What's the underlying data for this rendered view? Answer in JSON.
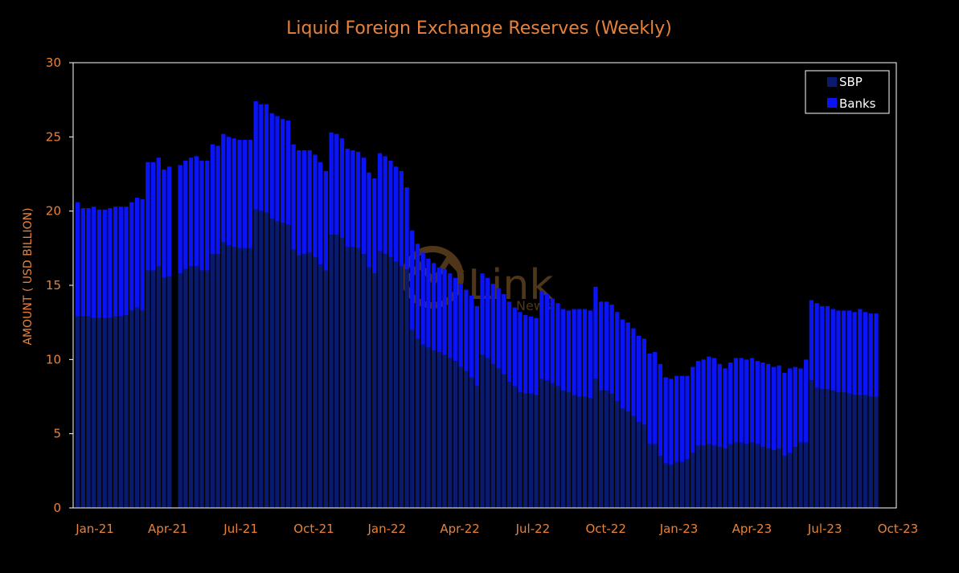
{
  "colors": {
    "background": "#000000",
    "text": "#e8823a",
    "sbp": "#0a1a6e",
    "banks": "#0a14f5",
    "axis": "#ffffff",
    "watermark": "#b07838"
  },
  "watermark": {
    "text": "Link",
    "subtext": "News"
  },
  "chart_data": {
    "type": "bar",
    "stacked": true,
    "title": "Liquid Foreign Exchange Reserves (Weekly)",
    "ylabel": "AMOUNT ( USD BILLION)",
    "xlabel": "",
    "ylim": [
      0,
      30
    ],
    "yticks": [
      0,
      5,
      10,
      15,
      20,
      25,
      30
    ],
    "xlim": [
      "2021-01-01",
      "2023-10-01"
    ],
    "xtick_labels": [
      "Jan-21",
      "Apr-21",
      "Jul-21",
      "Oct-21",
      "Jan-22",
      "Apr-22",
      "Jul-22",
      "Oct-22",
      "Jan-23",
      "Apr-23",
      "Jul-23",
      "Oct-23"
    ],
    "legend": {
      "position": "top-right",
      "entries": [
        "SBP",
        "Banks"
      ]
    },
    "grid": false,
    "series": [
      {
        "name": "SBP",
        "values": [
          12.9,
          12.9,
          12.9,
          12.8,
          12.8,
          12.8,
          12.8,
          12.9,
          12.9,
          13.0,
          13.3,
          13.5,
          13.3,
          16.0,
          16.0,
          16.3,
          15.5,
          15.6,
          0,
          15.8,
          16.1,
          16.3,
          16.3,
          16.0,
          16.0,
          17.1,
          17.1,
          17.9,
          17.7,
          17.6,
          17.5,
          17.5,
          17.5,
          20.1,
          20.0,
          19.9,
          19.5,
          19.3,
          19.2,
          19.1,
          17.4,
          17.0,
          17.1,
          17.2,
          16.9,
          16.4,
          16.0,
          18.4,
          18.4,
          18.2,
          17.6,
          17.6,
          17.5,
          17.1,
          16.2,
          15.8,
          17.3,
          17.1,
          16.9,
          16.6,
          16.3,
          16.1,
          12.0,
          11.4,
          11.0,
          10.8,
          10.6,
          10.5,
          10.3,
          10.1,
          9.9,
          9.5,
          9.2,
          8.8,
          8.2,
          10.3,
          10.1,
          9.7,
          9.4,
          9.0,
          8.5,
          8.2,
          7.8,
          7.7,
          7.7,
          7.6,
          8.7,
          8.6,
          8.4,
          8.2,
          7.9,
          7.8,
          7.6,
          7.5,
          7.5,
          7.4,
          8.7,
          7.9,
          7.9,
          7.7,
          7.2,
          6.7,
          6.5,
          6.2,
          5.8,
          5.6,
          4.3,
          4.3,
          3.5,
          3.0,
          2.9,
          3.1,
          3.1,
          3.3,
          3.7,
          4.2,
          4.2,
          4.3,
          4.2,
          4.1,
          4.0,
          4.3,
          4.4,
          4.4,
          4.3,
          4.4,
          4.3,
          4.1,
          4.0,
          3.9,
          4.0,
          3.5,
          3.7,
          4.1,
          4.4,
          4.4,
          8.6,
          8.1,
          8.0,
          8.0,
          7.9,
          7.8,
          7.8,
          7.7,
          7.6,
          7.6,
          7.6,
          7.5,
          7.5
        ],
        "color": "#0a1a6e"
      },
      {
        "name": "Banks",
        "values": [
          7.7,
          7.3,
          7.3,
          7.5,
          7.3,
          7.3,
          7.4,
          7.4,
          7.4,
          7.3,
          7.3,
          7.4,
          7.5,
          7.3,
          7.3,
          7.3,
          7.3,
          7.4,
          0,
          7.3,
          7.3,
          7.3,
          7.4,
          7.4,
          7.4,
          7.4,
          7.3,
          7.3,
          7.3,
          7.3,
          7.3,
          7.3,
          7.3,
          7.3,
          7.2,
          7.3,
          7.1,
          7.1,
          7.0,
          7.0,
          7.1,
          7.1,
          7.0,
          6.9,
          6.9,
          6.9,
          6.7,
          6.9,
          6.8,
          6.7,
          6.6,
          6.5,
          6.5,
          6.5,
          6.4,
          6.4,
          6.6,
          6.6,
          6.5,
          6.4,
          6.4,
          5.5,
          6.7,
          6.4,
          6.2,
          6.0,
          5.9,
          5.7,
          5.8,
          5.7,
          5.6,
          5.6,
          5.5,
          5.5,
          5.4,
          5.5,
          5.4,
          5.4,
          5.4,
          5.4,
          5.4,
          5.3,
          5.4,
          5.3,
          5.2,
          5.2,
          5.9,
          5.8,
          5.7,
          5.6,
          5.5,
          5.5,
          5.8,
          5.9,
          5.9,
          5.9,
          6.2,
          6.0,
          6.0,
          6.0,
          6.0,
          6.0,
          6.0,
          5.9,
          5.8,
          5.8,
          6.1,
          6.2,
          6.2,
          5.8,
          5.8,
          5.8,
          5.8,
          5.6,
          5.8,
          5.7,
          5.8,
          5.9,
          5.9,
          5.6,
          5.4,
          5.5,
          5.7,
          5.7,
          5.7,
          5.7,
          5.6,
          5.7,
          5.7,
          5.6,
          5.6,
          5.6,
          5.7,
          5.4,
          5.0,
          5.6,
          5.4,
          5.7,
          5.6,
          5.6,
          5.5,
          5.5,
          5.5,
          5.6,
          5.6,
          5.8,
          5.6,
          5.6,
          5.6
        ],
        "color": "#0a14f5"
      }
    ]
  }
}
